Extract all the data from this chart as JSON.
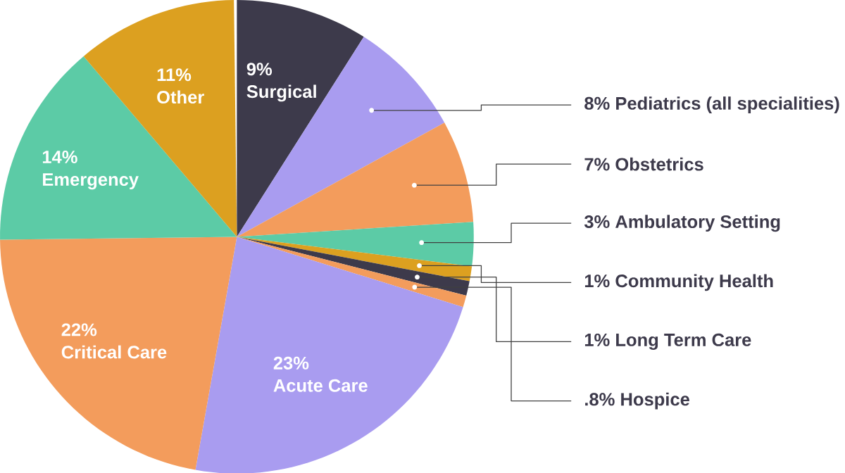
{
  "chart_data": {
    "type": "pie",
    "categories": [
      "Surgical",
      "Pediatrics (all specialities)",
      "Obstetrics",
      "Ambulatory Setting",
      "Community Health",
      "Long Term Care",
      "Hospice",
      "Acute Care",
      "Critical Care",
      "Emergency",
      "Other"
    ],
    "values": [
      9,
      8,
      7,
      3,
      1,
      1,
      0.8,
      23,
      22,
      14,
      11
    ],
    "value_labels": [
      "9%",
      "8%",
      "7%",
      "3%",
      "1%",
      "1%",
      ".8%",
      "23%",
      "22%",
      "14%",
      "11%"
    ],
    "colors": [
      "#3d3a4b",
      "#a99cf0",
      "#f39c5c",
      "#5ccba6",
      "#dca020",
      "#3d3a4b",
      "#f39c5c",
      "#a99cf0",
      "#f39c5c",
      "#5ccba6",
      "#dca020"
    ]
  }
}
